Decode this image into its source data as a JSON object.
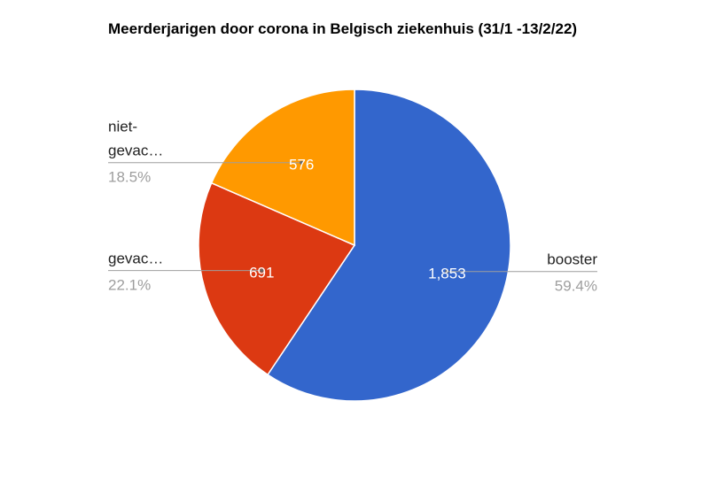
{
  "chart_data": {
    "type": "pie",
    "title": "Meerderjarigen door corona in Belgisch ziekenhuis (31/1 -13/2/22)",
    "slices": [
      {
        "label": "booster",
        "value": 1853,
        "value_label": "1,853",
        "percent_label": "59.4%",
        "color": "#3366cc",
        "legend_lines": [
          "booster"
        ],
        "legend_side": "right"
      },
      {
        "label": "gevac…",
        "value": 691,
        "value_label": "691",
        "percent_label": "22.1%",
        "color": "#dc3912",
        "legend_lines": [
          "gevac…"
        ],
        "legend_side": "left"
      },
      {
        "label": "niet-gevac…",
        "value": 576,
        "value_label": "576",
        "percent_label": "18.5%",
        "color": "#ff9900",
        "legend_lines": [
          "niet-",
          "gevac…"
        ],
        "legend_side": "left"
      }
    ],
    "start_angle": "12 o'clock",
    "direction": "clockwise",
    "legend": "labeled leader lines"
  }
}
